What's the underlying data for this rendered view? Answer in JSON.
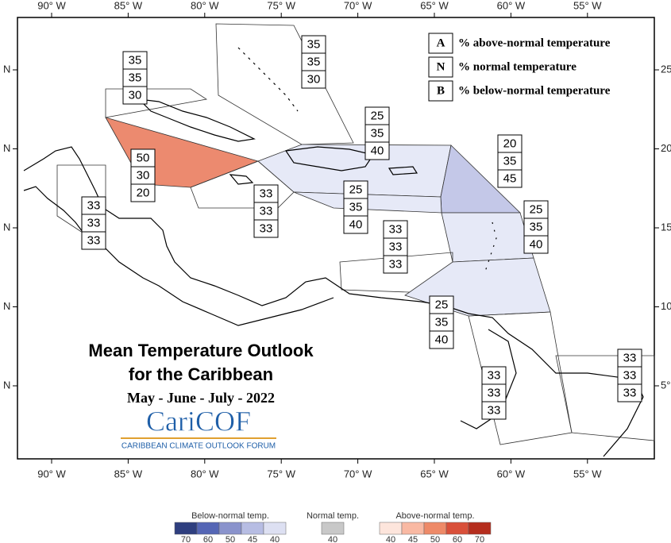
{
  "map": {
    "longitude_labels": [
      "90° W",
      "85° W",
      "80° W",
      "75° W",
      "70° W",
      "65° W",
      "60° W",
      "55° W"
    ],
    "left_labels": [
      "N",
      "N",
      "N",
      "N",
      "N"
    ],
    "right_labels": [
      "25",
      "20",
      "15",
      "10",
      "5°"
    ],
    "key": [
      {
        "letter": "A",
        "text": "% above-normal temperature"
      },
      {
        "letter": "N",
        "text": "% normal temperature"
      },
      {
        "letter": "B",
        "text": "% below-normal temperature"
      }
    ],
    "regions": [
      {
        "values": [
          "35",
          "35",
          "30"
        ],
        "color": "none"
      },
      {
        "values": [
          "35",
          "35",
          "30"
        ],
        "color": "none"
      },
      {
        "values": [
          "50",
          "30",
          "20"
        ],
        "color": "#ec8a6f"
      },
      {
        "values": [
          "25",
          "35",
          "40"
        ],
        "color": "#e6e9f7"
      },
      {
        "values": [
          "20",
          "35",
          "45"
        ],
        "color": "#c4c8e8"
      },
      {
        "values": [
          "33",
          "33",
          "33"
        ],
        "color": "none"
      },
      {
        "values": [
          "25",
          "35",
          "40"
        ],
        "color": "#e6e9f7"
      },
      {
        "values": [
          "33",
          "33",
          "33"
        ],
        "color": "none"
      },
      {
        "values": [
          "25",
          "35",
          "40"
        ],
        "color": "#e6e9f7"
      },
      {
        "values": [
          "33",
          "33",
          "33"
        ],
        "color": "none"
      },
      {
        "values": [
          "25",
          "35",
          "40"
        ],
        "color": "#e6e9f7"
      },
      {
        "values": [
          "33",
          "33",
          "33"
        ],
        "color": "none"
      },
      {
        "values": [
          "33",
          "33",
          "33"
        ],
        "color": "none"
      }
    ],
    "title_lines": [
      "Mean Temperature Outlook",
      "for the Caribbean"
    ],
    "period": "May - June - July - 2022",
    "logo": {
      "name": "CariCOF",
      "subtitle": "CARIBBEAN CLIMATE OUTLOOK FORUM"
    }
  },
  "legend": [
    {
      "label": "Below-normal temp.",
      "ticks": [
        "70",
        "60",
        "50",
        "45",
        "40"
      ],
      "colors": [
        "#2f3f7f",
        "#5566b5",
        "#8a93cc",
        "#b7bde3",
        "#dde0f2"
      ]
    },
    {
      "label": "Normal temp.",
      "ticks": [
        "40"
      ],
      "colors": [
        "#c8c8c8"
      ]
    },
    {
      "label": "Above-normal temp.",
      "ticks": [
        "40",
        "45",
        "50",
        "60",
        "70"
      ],
      "colors": [
        "#fde5dc",
        "#f9b9a3",
        "#ee8a68",
        "#d9503a",
        "#b52e1e"
      ]
    }
  ]
}
